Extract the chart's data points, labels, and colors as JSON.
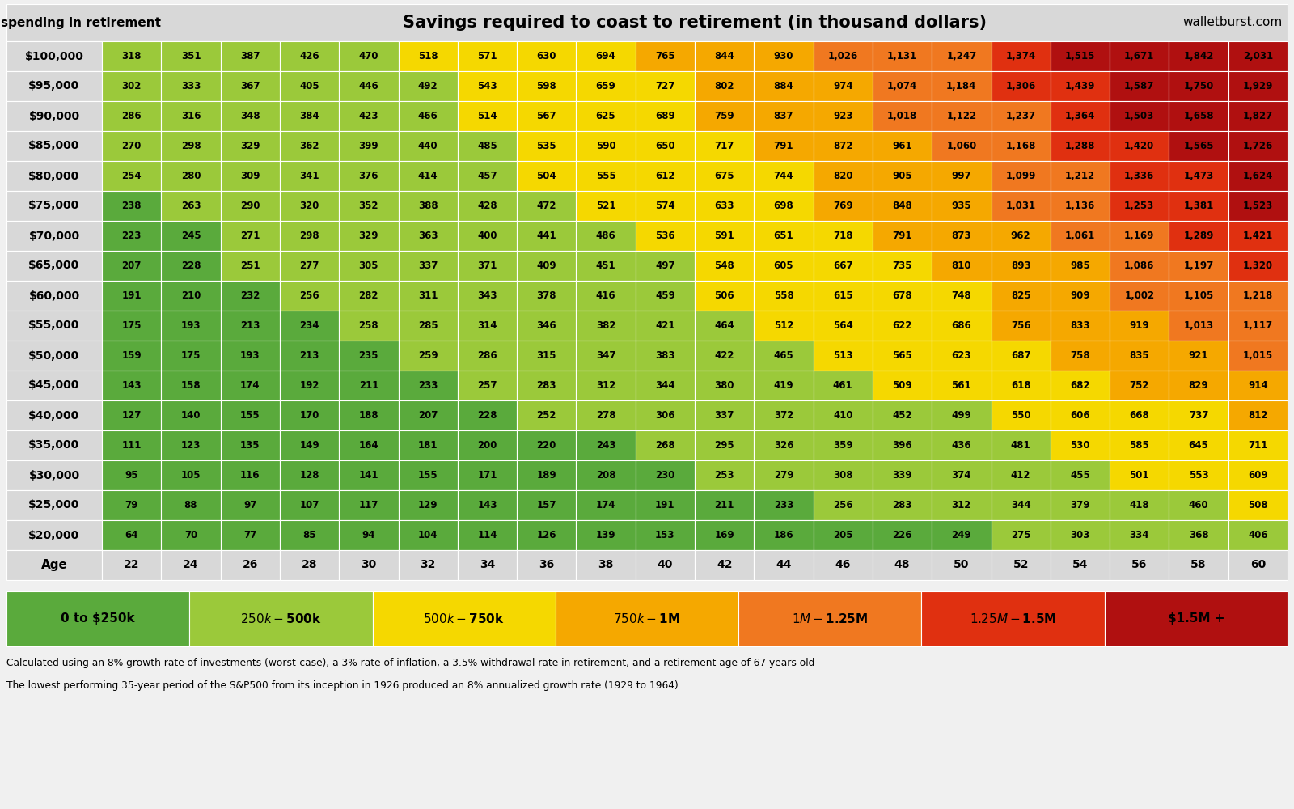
{
  "title": "Savings required to coast to retirement (in thousand dollars)",
  "subtitle": "Annual spending in retirement",
  "watermark": "walletburst.com",
  "ages": [
    22,
    24,
    26,
    28,
    30,
    32,
    34,
    36,
    38,
    40,
    42,
    44,
    46,
    48,
    50,
    52,
    54,
    56,
    58,
    60
  ],
  "spending_labels": [
    "$100,000",
    "$95,000",
    "$90,000",
    "$85,000",
    "$80,000",
    "$75,000",
    "$70,000",
    "$65,000",
    "$60,000",
    "$55,000",
    "$50,000",
    "$45,000",
    "$40,000",
    "$35,000",
    "$30,000",
    "$25,000",
    "$20,000"
  ],
  "values": [
    [
      318,
      351,
      387,
      426,
      470,
      518,
      571,
      630,
      694,
      765,
      844,
      930,
      1026,
      1131,
      1247,
      1374,
      1515,
      1671,
      1842,
      2031
    ],
    [
      302,
      333,
      367,
      405,
      446,
      492,
      543,
      598,
      659,
      727,
      802,
      884,
      974,
      1074,
      1184,
      1306,
      1439,
      1587,
      1750,
      1929
    ],
    [
      286,
      316,
      348,
      384,
      423,
      466,
      514,
      567,
      625,
      689,
      759,
      837,
      923,
      1018,
      1122,
      1237,
      1364,
      1503,
      1658,
      1827
    ],
    [
      270,
      298,
      329,
      362,
      399,
      440,
      485,
      535,
      590,
      650,
      717,
      791,
      872,
      961,
      1060,
      1168,
      1288,
      1420,
      1565,
      1726
    ],
    [
      254,
      280,
      309,
      341,
      376,
      414,
      457,
      504,
      555,
      612,
      675,
      744,
      820,
      905,
      997,
      1099,
      1212,
      1336,
      1473,
      1624
    ],
    [
      238,
      263,
      290,
      320,
      352,
      388,
      428,
      472,
      521,
      574,
      633,
      698,
      769,
      848,
      935,
      1031,
      1136,
      1253,
      1381,
      1523
    ],
    [
      223,
      245,
      271,
      298,
      329,
      363,
      400,
      441,
      486,
      536,
      591,
      651,
      718,
      791,
      873,
      962,
      1061,
      1169,
      1289,
      1421
    ],
    [
      207,
      228,
      251,
      277,
      305,
      337,
      371,
      409,
      451,
      497,
      548,
      605,
      667,
      735,
      810,
      893,
      985,
      1086,
      1197,
      1320
    ],
    [
      191,
      210,
      232,
      256,
      282,
      311,
      343,
      378,
      416,
      459,
      506,
      558,
      615,
      678,
      748,
      825,
      909,
      1002,
      1105,
      1218
    ],
    [
      175,
      193,
      213,
      234,
      258,
      285,
      314,
      346,
      382,
      421,
      464,
      512,
      564,
      622,
      686,
      756,
      833,
      919,
      1013,
      1117
    ],
    [
      159,
      175,
      193,
      213,
      235,
      259,
      286,
      315,
      347,
      383,
      422,
      465,
      513,
      565,
      623,
      687,
      758,
      835,
      921,
      1015
    ],
    [
      143,
      158,
      174,
      192,
      211,
      233,
      257,
      283,
      312,
      344,
      380,
      419,
      461,
      509,
      561,
      618,
      682,
      752,
      829,
      914
    ],
    [
      127,
      140,
      155,
      170,
      188,
      207,
      228,
      252,
      278,
      306,
      337,
      372,
      410,
      452,
      499,
      550,
      606,
      668,
      737,
      812
    ],
    [
      111,
      123,
      135,
      149,
      164,
      181,
      200,
      220,
      243,
      268,
      295,
      326,
      359,
      396,
      436,
      481,
      530,
      585,
      645,
      711
    ],
    [
      95,
      105,
      116,
      128,
      141,
      155,
      171,
      189,
      208,
      230,
      253,
      279,
      308,
      339,
      374,
      412,
      455,
      501,
      553,
      609
    ],
    [
      79,
      88,
      97,
      107,
      117,
      129,
      143,
      157,
      174,
      191,
      211,
      233,
      256,
      283,
      312,
      344,
      379,
      418,
      460,
      508
    ],
    [
      64,
      70,
      77,
      85,
      94,
      104,
      114,
      126,
      139,
      153,
      169,
      186,
      205,
      226,
      249,
      275,
      303,
      334,
      368,
      406
    ]
  ],
  "color_thresholds": [
    250,
    500,
    750,
    1000,
    1250,
    1500
  ],
  "color_bands": [
    {
      "label": "0 to $250k",
      "color": "#5aaa3c"
    },
    {
      "label": "$250k - $500k",
      "color": "#9bc93a"
    },
    {
      "label": "$500k - $750k",
      "color": "#f5d800"
    },
    {
      "label": "$750k - $1M",
      "color": "#f5a800"
    },
    {
      "label": "$1M - $1.25M",
      "color": "#f07820"
    },
    {
      "label": "$1.25M - $1.5M",
      "color": "#e03010"
    },
    {
      "label": "$1.5M +",
      "color": "#b01010"
    }
  ],
  "footer_line1": "Calculated using an 8% growth rate of investments (worst-case), a 3% rate of inflation, a 3.5% withdrawal rate in retirement, and a retirement age of 67 years old",
  "footer_line2": "The lowest performing 35-year period of the S&P500 from its inception in 1926 produced an 8% annualized growth rate (1929 to 1964).",
  "bg_color": "#f0f0f0",
  "header_bg": "#d8d8d8",
  "cell_border": "#ffffff"
}
